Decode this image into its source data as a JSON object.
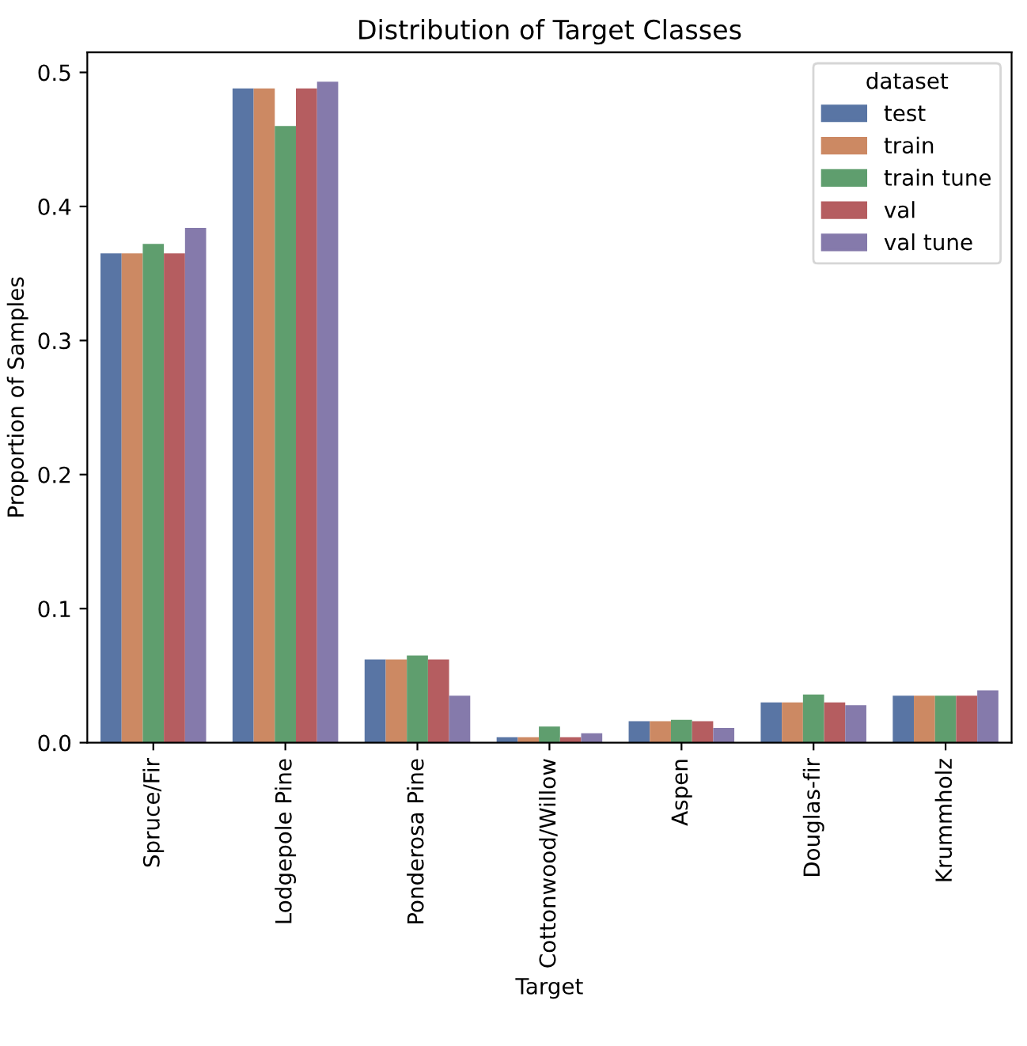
{
  "chart_data": {
    "type": "bar",
    "title": "Distribution of Target Classes",
    "xlabel": "Target",
    "ylabel": "Proportion of Samples",
    "legend_title": "dataset",
    "legend": "top right",
    "categories": [
      "Spruce/Fir",
      "Lodgepole Pine",
      "Ponderosa Pine",
      "Cottonwood/Willow",
      "Aspen",
      "Douglas-fir",
      "Krummholz"
    ],
    "series": [
      {
        "name": "test",
        "color": "#5975a4",
        "values": [
          0.365,
          0.488,
          0.062,
          0.004,
          0.016,
          0.03,
          0.035
        ]
      },
      {
        "name": "train",
        "color": "#cc8963",
        "values": [
          0.365,
          0.488,
          0.062,
          0.004,
          0.016,
          0.03,
          0.035
        ]
      },
      {
        "name": "train tune",
        "color": "#5f9e6e",
        "values": [
          0.372,
          0.46,
          0.065,
          0.012,
          0.017,
          0.036,
          0.035
        ]
      },
      {
        "name": "val",
        "color": "#b55d60",
        "values": [
          0.365,
          0.488,
          0.062,
          0.004,
          0.016,
          0.03,
          0.035
        ]
      },
      {
        "name": "val tune",
        "color": "#857aab",
        "values": [
          0.384,
          0.493,
          0.035,
          0.007,
          0.011,
          0.028,
          0.039
        ]
      }
    ],
    "ylim": [
      0,
      0.515
    ],
    "yticks": [
      {
        "value": 0,
        "label": "0.0"
      },
      0.1,
      0.2,
      0.3,
      0.4,
      0.5
    ],
    "grid": false
  }
}
